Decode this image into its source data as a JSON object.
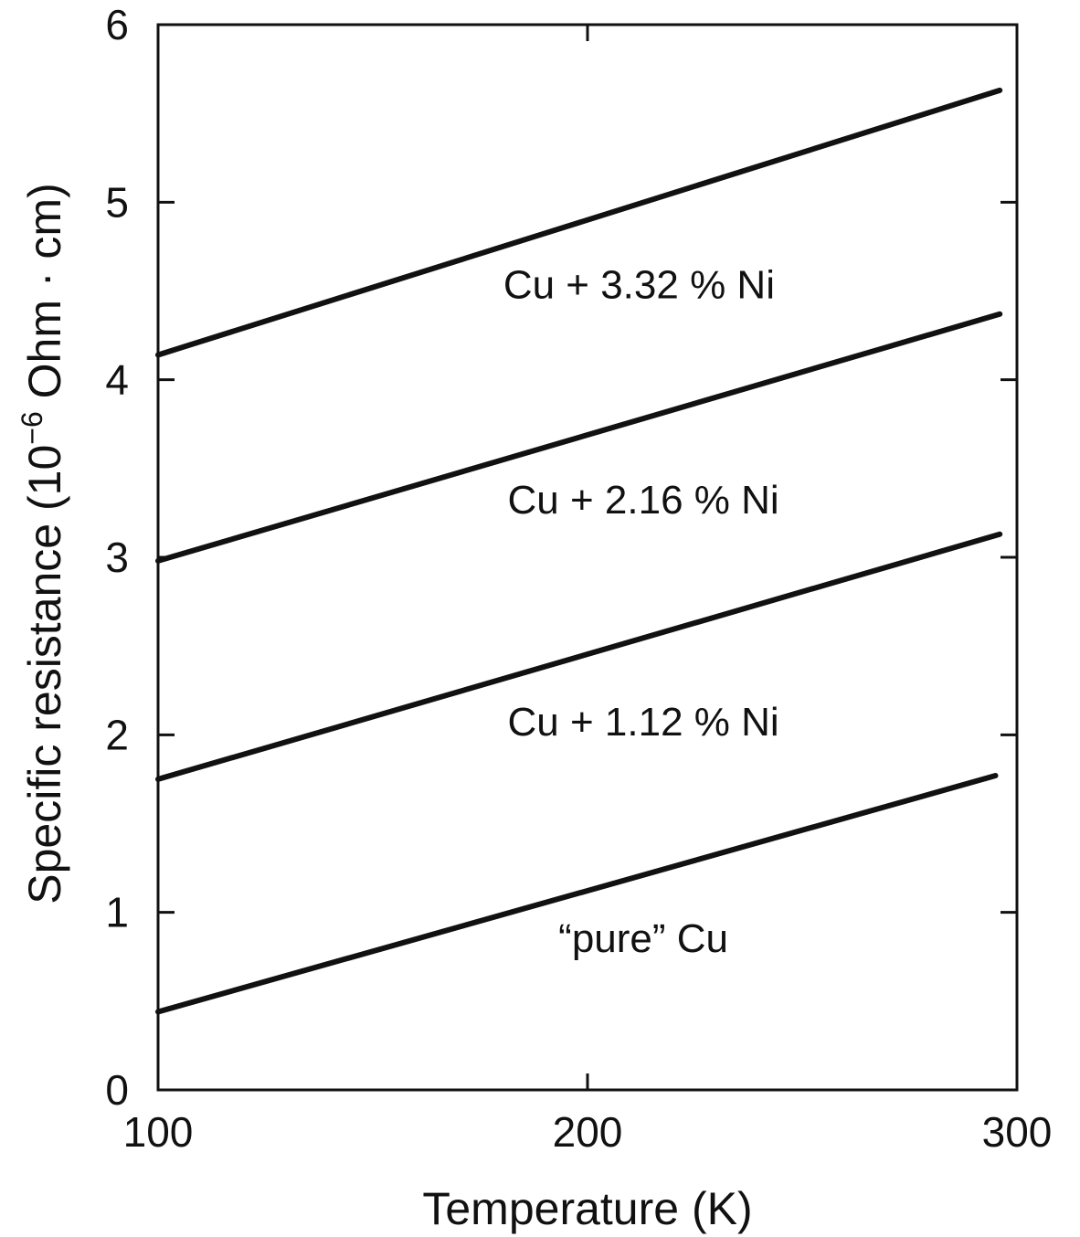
{
  "chart_data": {
    "type": "line",
    "title": "",
    "xlabel": "Temperature (K)",
    "ylabel_parts": {
      "before": "Specific resistance (10",
      "superscript": "−6",
      "after": " Ohm · cm)"
    },
    "xlim": [
      100,
      300
    ],
    "ylim": [
      0,
      6
    ],
    "x_ticks": [
      100,
      200,
      300
    ],
    "y_ticks": [
      0,
      1,
      2,
      3,
      4,
      5,
      6
    ],
    "grid": false,
    "series": [
      {
        "name": "“pure” Cu",
        "x": [
          100,
          295
        ],
        "y": [
          0.44,
          1.77
        ]
      },
      {
        "name": "Cu + 1.12 % Ni",
        "x": [
          100,
          296
        ],
        "y": [
          1.75,
          3.13
        ]
      },
      {
        "name": "Cu + 2.16 % Ni",
        "x": [
          100,
          296
        ],
        "y": [
          2.98,
          4.37
        ]
      },
      {
        "name": "Cu + 3.32 % Ni",
        "x": [
          100,
          296
        ],
        "y": [
          4.14,
          5.63
        ]
      }
    ]
  }
}
